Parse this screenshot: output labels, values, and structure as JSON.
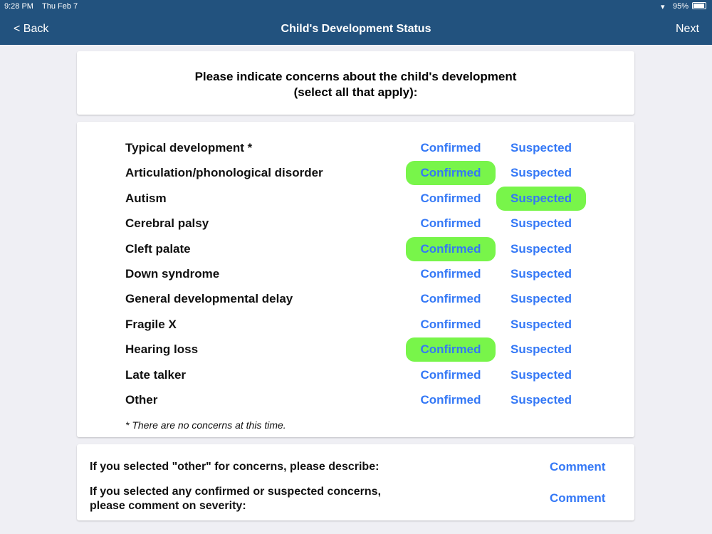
{
  "status": {
    "time": "9:28 PM",
    "date": "Thu Feb 7",
    "battery": "95%",
    "battery_level": 0.95
  },
  "nav": {
    "back": "< Back",
    "title": "Child's Development Status",
    "next": "Next"
  },
  "prompt": {
    "pre": "Please indicate ",
    "bold": "concerns",
    "post": " about the child's development",
    "line2": "(select all that apply):"
  },
  "options": {
    "confirmed": "Confirmed",
    "suspected": "Suspected"
  },
  "colors": {
    "selected": "#78f54a",
    "link": "#3478f6",
    "header": "#22527e"
  },
  "rows": [
    {
      "label": "Typical development *",
      "selected": null
    },
    {
      "label": "Articulation/phonological disorder",
      "selected": "confirmed"
    },
    {
      "label": "Autism",
      "selected": "suspected"
    },
    {
      "label": "Cerebral palsy",
      "selected": null
    },
    {
      "label": "Cleft palate",
      "selected": "confirmed"
    },
    {
      "label": "Down syndrome",
      "selected": null
    },
    {
      "label": "General developmental delay",
      "selected": null
    },
    {
      "label": "Fragile X",
      "selected": null
    },
    {
      "label": "Hearing loss",
      "selected": "confirmed"
    },
    {
      "label": "Late talker",
      "selected": null
    },
    {
      "label": "Other",
      "selected": null
    }
  ],
  "note": "* There are no concerns at this time.",
  "footer": {
    "q1_pre": "If you selected \"other\" for ",
    "q1_bold": "concerns",
    "q1_post": ", please describe:",
    "q2_pre": "If you selected any confirmed or suspected ",
    "q2_bold": "concerns",
    "q2_post": ",",
    "q2_line2": "please comment on severity:",
    "comment": "Comment"
  }
}
